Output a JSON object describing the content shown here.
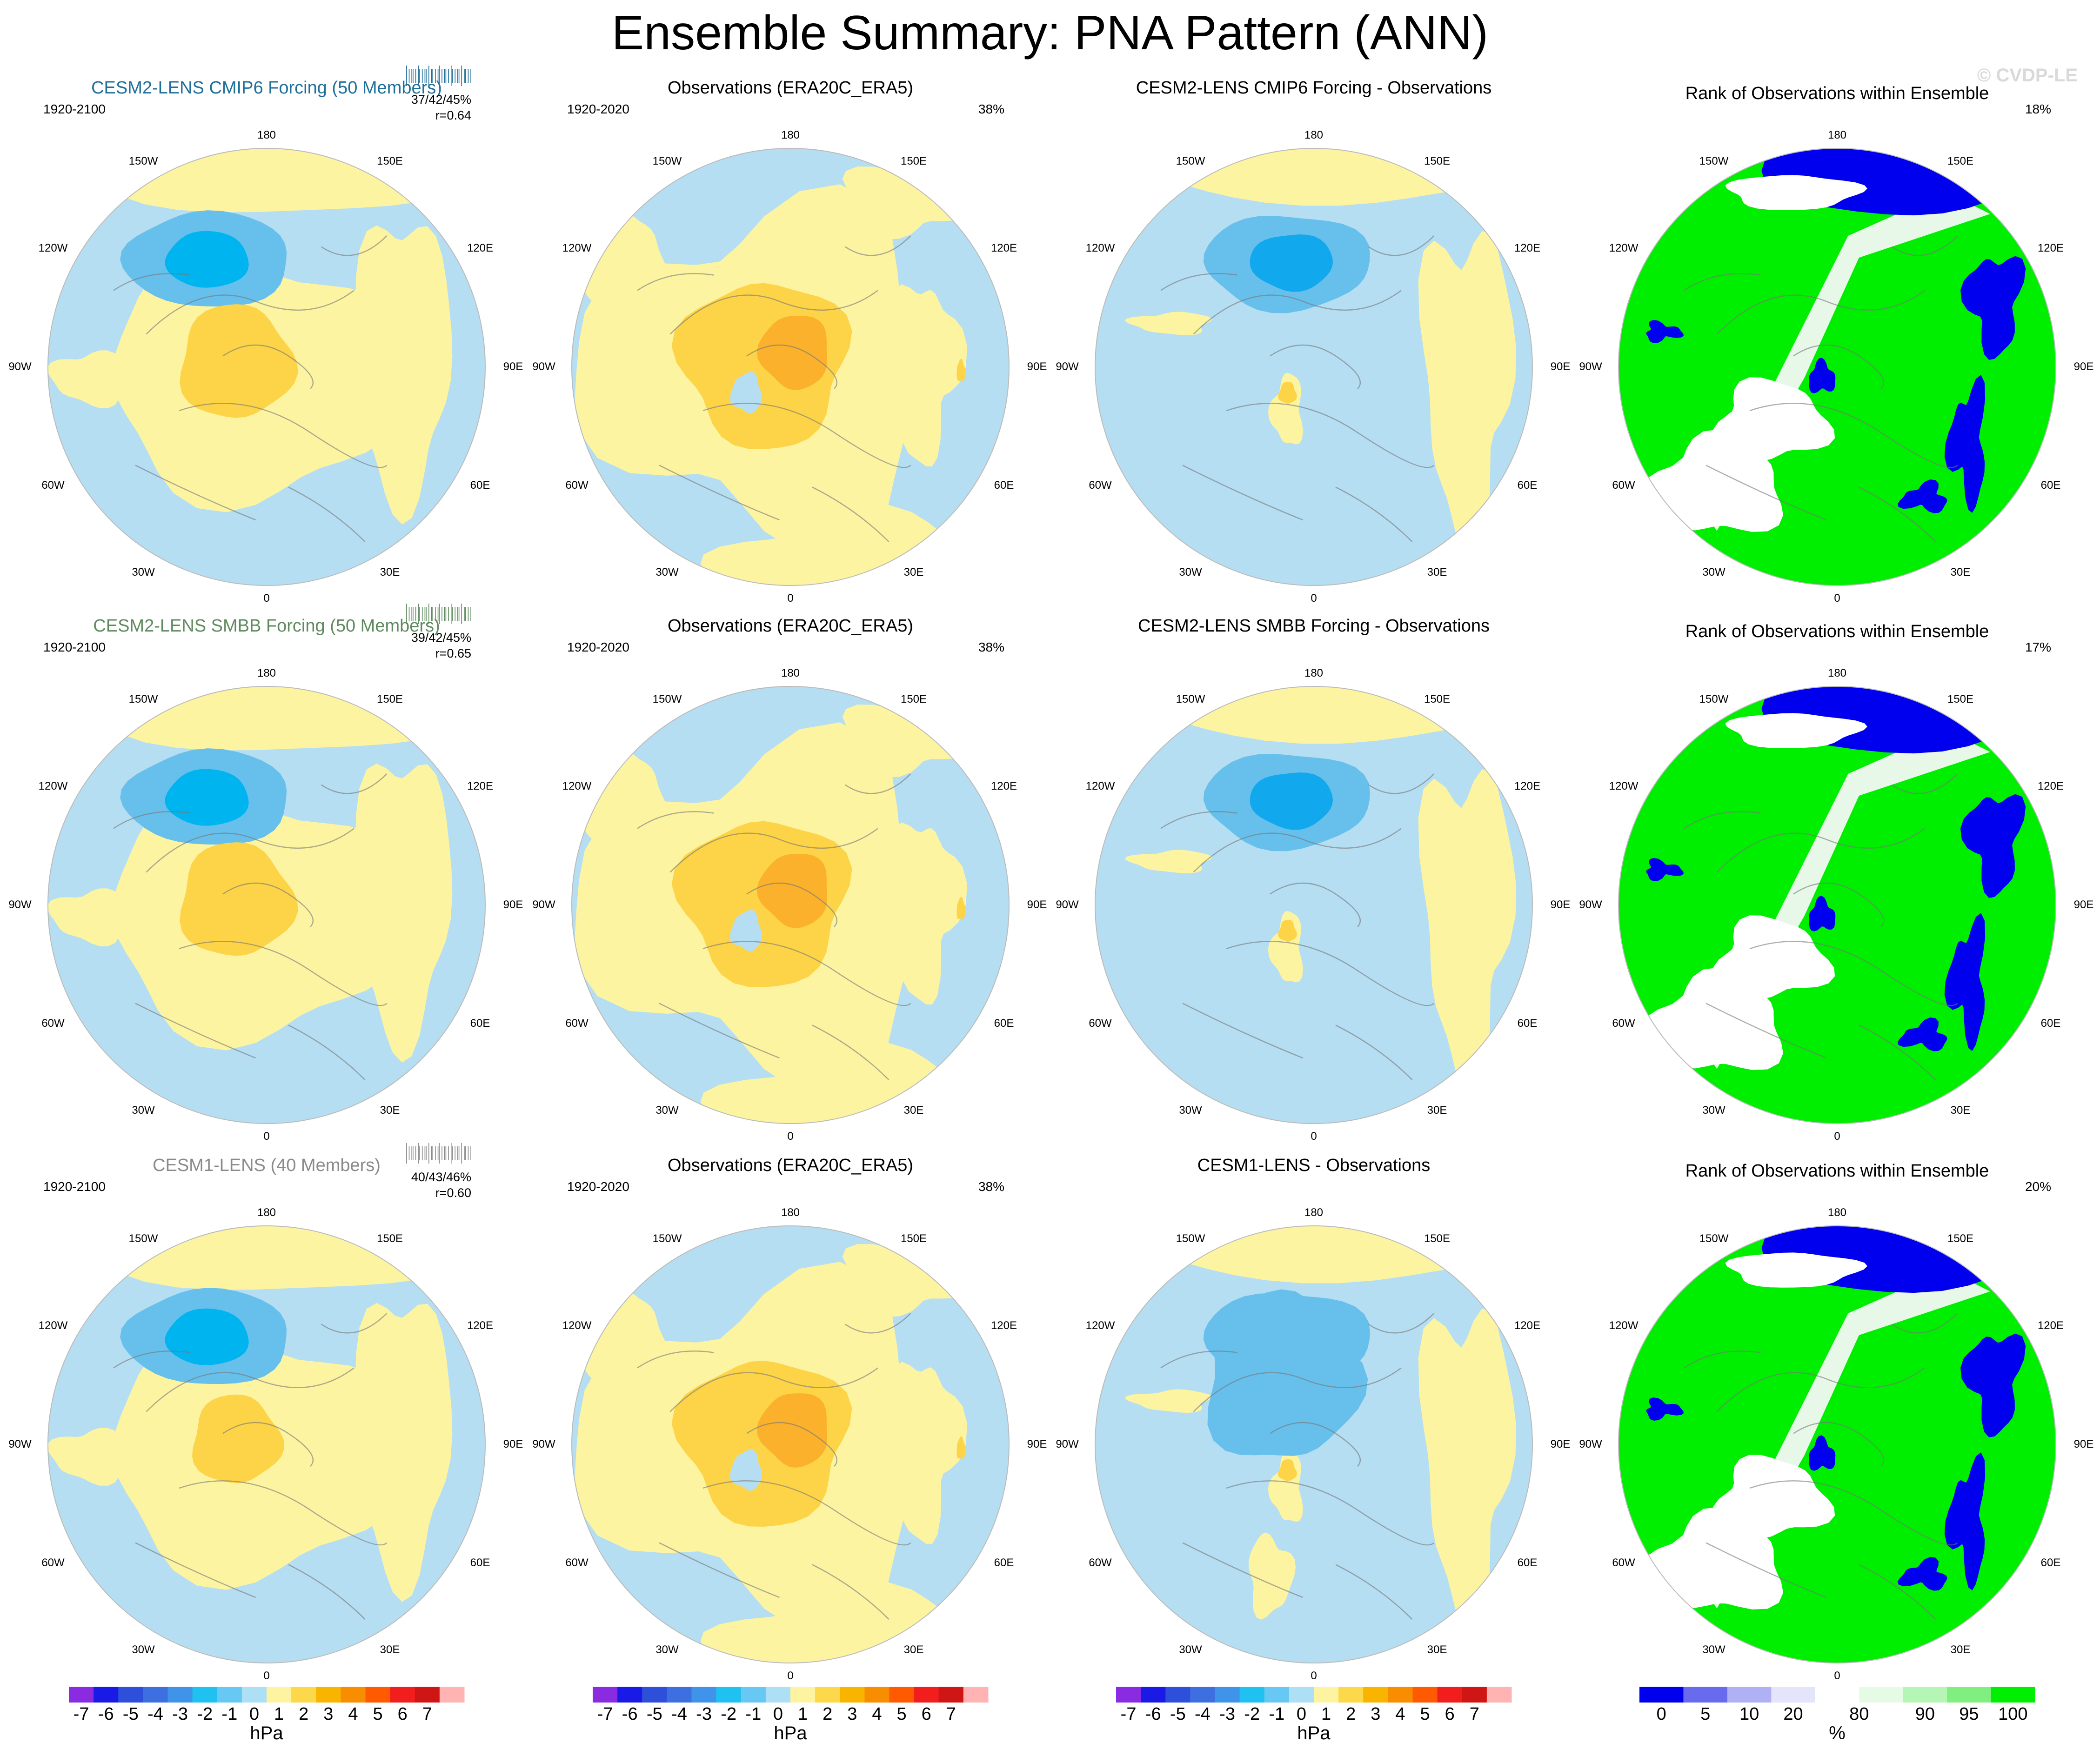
{
  "title": "Ensemble Summary: PNA Pattern (ANN)",
  "watermark": "© CVDP-LE",
  "rows": [
    {
      "model_title": "CESM2-LENS CMIP6 Forcing (50 Members)",
      "model_title_color": "#1f6f99",
      "model_period": "1920-2100",
      "stats_pct": "37/42/45%",
      "stats_r": "r=0.64",
      "obs_title": "Observations (ERA20C_ERA5)",
      "obs_period": "1920-2020",
      "obs_pct": "38%",
      "diff_title": "CESM2-LENS CMIP6 Forcing - Observations",
      "rank_title": "Rank of Observations within Ensemble",
      "rank_pct": "18%"
    },
    {
      "model_title": "CESM2-LENS SMBB Forcing (50 Members)",
      "model_title_color": "#5f8a5f",
      "model_period": "1920-2100",
      "stats_pct": "39/42/45%",
      "stats_r": "r=0.65",
      "obs_title": "Observations (ERA20C_ERA5)",
      "obs_period": "1920-2020",
      "obs_pct": "38%",
      "diff_title": "CESM2-LENS SMBB Forcing - Observations",
      "rank_title": "Rank of Observations within Ensemble",
      "rank_pct": "17%"
    },
    {
      "model_title": "CESM1-LENS (40 Members)",
      "model_title_color": "#8a8a8a",
      "model_period": "1920-2100",
      "stats_pct": "40/43/46%",
      "stats_r": "r=0.60",
      "obs_title": "Observations (ERA20C_ERA5)",
      "obs_period": "1920-2020",
      "obs_pct": "38%",
      "diff_title": "CESM1-LENS - Observations",
      "rank_title": "Rank of Observations within Ensemble",
      "rank_pct": "20%"
    }
  ],
  "longitude_labels": {
    "top": "180",
    "bottom": "0",
    "upper_left": "150W",
    "upper_right": "150E",
    "mid_upper_left": "120W",
    "mid_upper_right": "120E",
    "left": "90W",
    "right": "90E",
    "mid_lower_left": "60W",
    "mid_lower_right": "60E",
    "lower_left": "30W",
    "lower_right": "30E"
  },
  "colorbar_hpa": {
    "unit": "hPa",
    "ticks": [
      "-7",
      "-6",
      "-5",
      "-4",
      "-3",
      "-2",
      "-1",
      "0",
      "1",
      "2",
      "3",
      "4",
      "5",
      "6",
      "7"
    ],
    "colors": [
      "#8a2be2",
      "#1a1ae6",
      "#2e4fd9",
      "#3d6fe0",
      "#3f94ea",
      "#1ec1f0",
      "#67c8f3",
      "#aee0f5",
      "#fdf3a0",
      "#fcd84a",
      "#f9b400",
      "#f98d00",
      "#ff5a00",
      "#f21d1d",
      "#d01515",
      "#ffb3b3"
    ]
  },
  "colorbar_rank": {
    "unit": "%",
    "ticks": [
      "0",
      "5",
      "10",
      "20",
      "80",
      "90",
      "95",
      "100"
    ],
    "colors": [
      "#0000ee",
      "#6a6aee",
      "#b0b0f5",
      "#e4e4fa",
      "#ffffff",
      "#e6fbe6",
      "#b5f5b5",
      "#80ef80",
      "#00ee00"
    ]
  },
  "map_colors": {
    "neg1": "#b5def2",
    "neg2": "#67c0ec",
    "neg3": "#00b4f0",
    "neg3_diff": "#12a8ee",
    "pos1": "#fdf4a2",
    "pos2": "#fdd447",
    "pos3": "#fbb12c",
    "rank_green": "#00ee00",
    "rank_blue": "#0000ee",
    "rank_white": "#ffffff",
    "rank_pale": "#e8f8e8"
  }
}
